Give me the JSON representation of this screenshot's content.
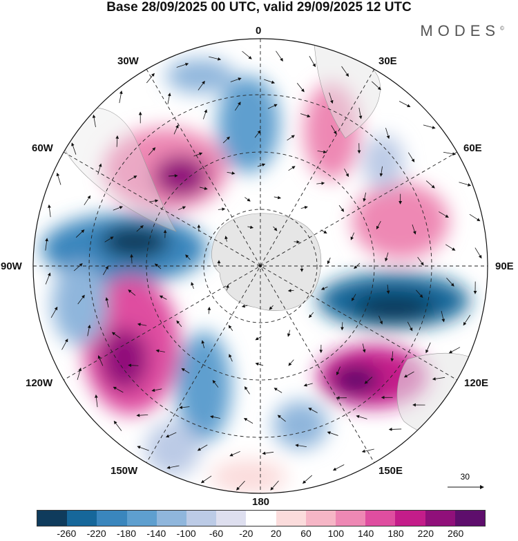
{
  "title": "Base 28/09/2025 00 UTC, valid 29/09/2025 12 UTC",
  "brand": "MODES",
  "brand_mark": "©",
  "longitude_labels": {
    "lon_0": "0",
    "lon_30e": "30E",
    "lon_60e": "60E",
    "lon_90e": "90E",
    "lon_120e": "120E",
    "lon_150e": "150E",
    "lon_180": "180",
    "lon_150w": "150W",
    "lon_120w": "120W",
    "lon_90w": "90W",
    "lon_60w": "60W",
    "lon_30w": "30W"
  },
  "vector_scale_label": "30",
  "colorbar": {
    "colors": [
      "#0f3b5c",
      "#16679a",
      "#3a86bd",
      "#5e9fcf",
      "#8fb6dc",
      "#bccbe6",
      "#dedfef",
      "#ffffff",
      "#fbdcdc",
      "#f6b6c6",
      "#ee88b4",
      "#df4ea0",
      "#c41d8a",
      "#90107a",
      "#5e0e6c"
    ],
    "tick_labels": [
      "-260",
      "-220",
      "-180",
      "-140",
      "-100",
      "-60",
      "-20",
      "20",
      "60",
      "100",
      "140",
      "180",
      "220",
      "260"
    ]
  }
}
